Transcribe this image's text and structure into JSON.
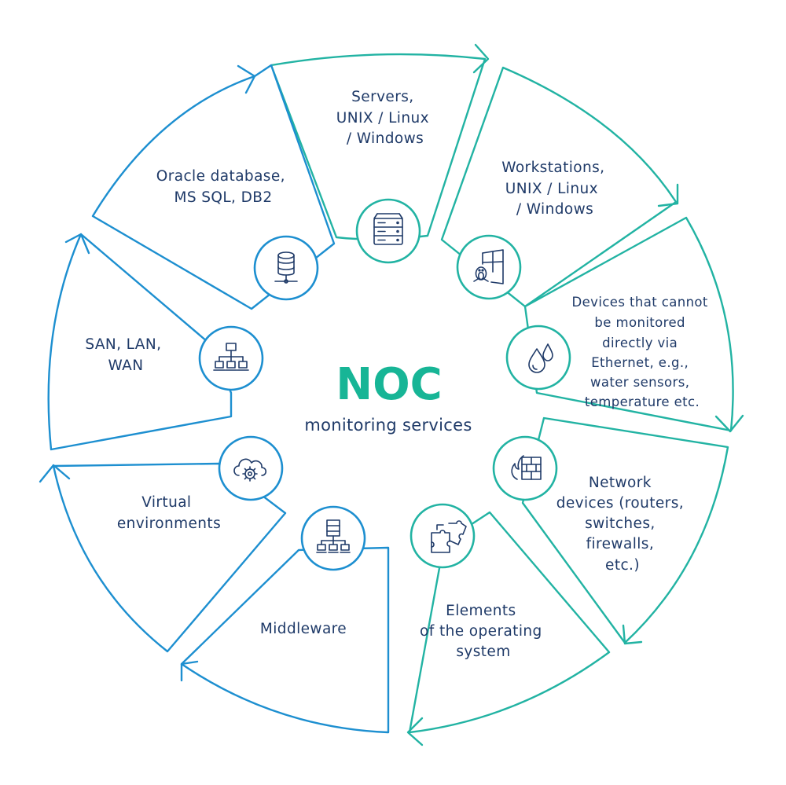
{
  "colors": {
    "teal": "#22b3a3",
    "blue": "#1d8fd0",
    "text": "#1f3a68",
    "noc_title": "#17b596"
  },
  "center": {
    "title": "NOC",
    "subtitle": "monitoring services"
  },
  "segments": [
    {
      "id": "servers",
      "icon": "server-rack-icon",
      "lines": [
        "Servers,",
        "UNIX / Linux",
        "/ Windows"
      ]
    },
    {
      "id": "workstations",
      "icon": "windows-linux-icon",
      "lines": [
        "Workstations,",
        "UNIX / Linux",
        "/ Windows"
      ]
    },
    {
      "id": "devices",
      "icon": "water-drops-icon",
      "lines": [
        "Devices that cannot",
        "be monitored",
        "directly via",
        "Ethernet, e.g.,",
        "water sensors,",
        "temperature etc."
      ]
    },
    {
      "id": "network",
      "icon": "firewall-icon",
      "lines": [
        "Network",
        "devices (routers,",
        "switches,",
        "firewalls,",
        "etc.)"
      ]
    },
    {
      "id": "os",
      "icon": "puzzle-icon",
      "lines": [
        "Elements",
        "of the operating",
        "system"
      ]
    },
    {
      "id": "middleware",
      "icon": "middleware-icon",
      "lines": [
        "Middleware"
      ]
    },
    {
      "id": "virtual",
      "icon": "cloud-gear-icon",
      "lines": [
        "Virtual",
        "environments"
      ]
    },
    {
      "id": "san",
      "icon": "network-topology-icon",
      "lines": [
        "SAN, LAN,",
        "WAN"
      ]
    },
    {
      "id": "database",
      "icon": "database-icon",
      "lines": [
        "Oracle database,",
        "MS SQL, DB2"
      ]
    }
  ]
}
